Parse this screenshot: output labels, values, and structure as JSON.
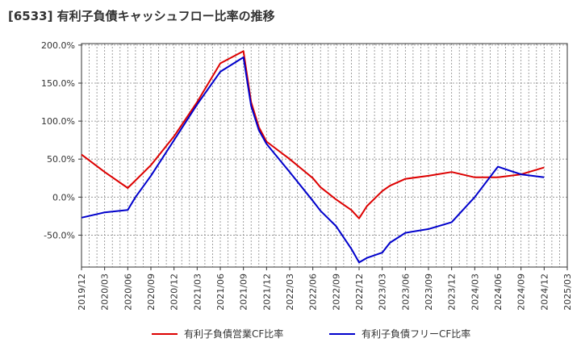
{
  "chart_data": {
    "type": "line",
    "title": "[6533]  有利子負債キャッシュフロー比率の推移",
    "xlabel": "",
    "ylabel": "",
    "y_ticks": [
      "200.0%",
      "150.0%",
      "100.0%",
      "50.0%",
      "0.0%",
      "-50.0%"
    ],
    "y_tick_values": [
      200,
      150,
      100,
      50,
      0,
      -50
    ],
    "ylim": [
      -92,
      202
    ],
    "x_ticks": [
      "2019/12",
      "2020/03",
      "2020/06",
      "2020/09",
      "2020/12",
      "2021/03",
      "2021/06",
      "2021/09",
      "2021/12",
      "2022/03",
      "2022/06",
      "2022/09",
      "2022/12",
      "2023/03",
      "2023/06",
      "2023/09",
      "2023/12",
      "2024/03",
      "2024/06",
      "2024/09",
      "2024/12",
      "2025/03"
    ],
    "grid": true,
    "legend_position": "bottom",
    "series": [
      {
        "name": "有利子負債営業CF比率",
        "color": "#dd0000",
        "points": [
          [
            "2019/12",
            56
          ],
          [
            "2020/03",
            33
          ],
          [
            "2020/06",
            12
          ],
          [
            "2020/07",
            22
          ],
          [
            "2020/09",
            42
          ],
          [
            "2020/12",
            80
          ],
          [
            "2021/03",
            125
          ],
          [
            "2021/06",
            176
          ],
          [
            "2021/09",
            192
          ],
          [
            "2021/10",
            125
          ],
          [
            "2021/11",
            92
          ],
          [
            "2021/12",
            73
          ],
          [
            "2022/03",
            50
          ],
          [
            "2022/06",
            25
          ],
          [
            "2022/07",
            13
          ],
          [
            "2022/08",
            5
          ],
          [
            "2022/09",
            -3
          ],
          [
            "2022/11",
            -17
          ],
          [
            "2022/12",
            -28
          ],
          [
            "2023/01",
            -12
          ],
          [
            "2023/03",
            8
          ],
          [
            "2023/04",
            15
          ],
          [
            "2023/06",
            24
          ],
          [
            "2023/09",
            28
          ],
          [
            "2023/12",
            33
          ],
          [
            "2024/03",
            26
          ],
          [
            "2024/06",
            26
          ],
          [
            "2024/09",
            30
          ],
          [
            "2024/12",
            39
          ]
        ]
      },
      {
        "name": "有利子負債フリーCF比率",
        "color": "#0000cc",
        "points": [
          [
            "2019/12",
            -27
          ],
          [
            "2020/03",
            -20
          ],
          [
            "2020/06",
            -17
          ],
          [
            "2020/07",
            0
          ],
          [
            "2020/09",
            28
          ],
          [
            "2020/12",
            75
          ],
          [
            "2021/03",
            122
          ],
          [
            "2021/06",
            165
          ],
          [
            "2021/09",
            184
          ],
          [
            "2021/10",
            120
          ],
          [
            "2021/11",
            88
          ],
          [
            "2021/12",
            70
          ],
          [
            "2022/03",
            33
          ],
          [
            "2022/06",
            -5
          ],
          [
            "2022/07",
            -18
          ],
          [
            "2022/09",
            -38
          ],
          [
            "2022/11",
            -68
          ],
          [
            "2022/12",
            -86
          ],
          [
            "2023/01",
            -80
          ],
          [
            "2023/03",
            -73
          ],
          [
            "2023/04",
            -60
          ],
          [
            "2023/06",
            -47
          ],
          [
            "2023/09",
            -42
          ],
          [
            "2023/12",
            -33
          ],
          [
            "2024/03",
            0
          ],
          [
            "2024/06",
            40
          ],
          [
            "2024/09",
            30
          ],
          [
            "2024/12",
            26
          ]
        ]
      }
    ]
  }
}
